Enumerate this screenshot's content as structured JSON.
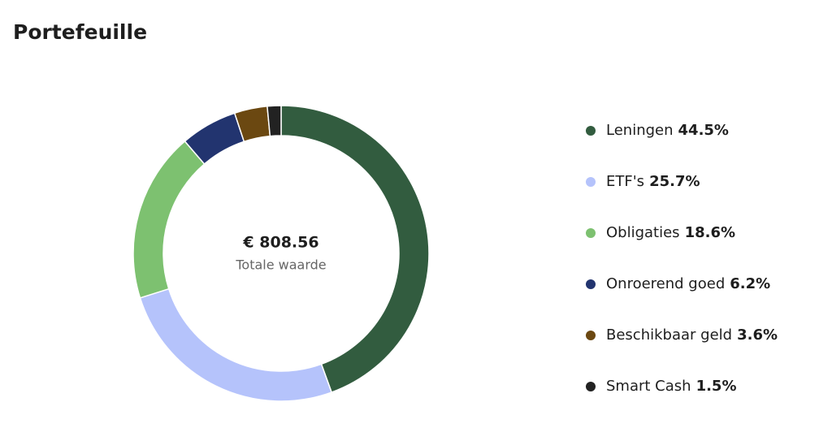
{
  "chart_data": {
    "type": "donut",
    "title": "Portefeuille",
    "center_value": "€ 808.56",
    "center_label": "Totale waarde",
    "categories": [
      "Leningen",
      "ETF's",
      "Obligaties",
      "Onroerend goed",
      "Beschikbaar geld",
      "Smart Cash"
    ],
    "values": [
      44.5,
      25.7,
      18.6,
      6.2,
      3.6,
      1.5
    ],
    "value_labels": [
      "44.5%",
      "25.7%",
      "18.6%",
      "6.2%",
      "3.6%",
      "1.5%"
    ],
    "colors": [
      "#325c3f",
      "#b5c3fb",
      "#7dc170",
      "#22346f",
      "#6b4811",
      "#222222"
    ],
    "legend": "right"
  }
}
